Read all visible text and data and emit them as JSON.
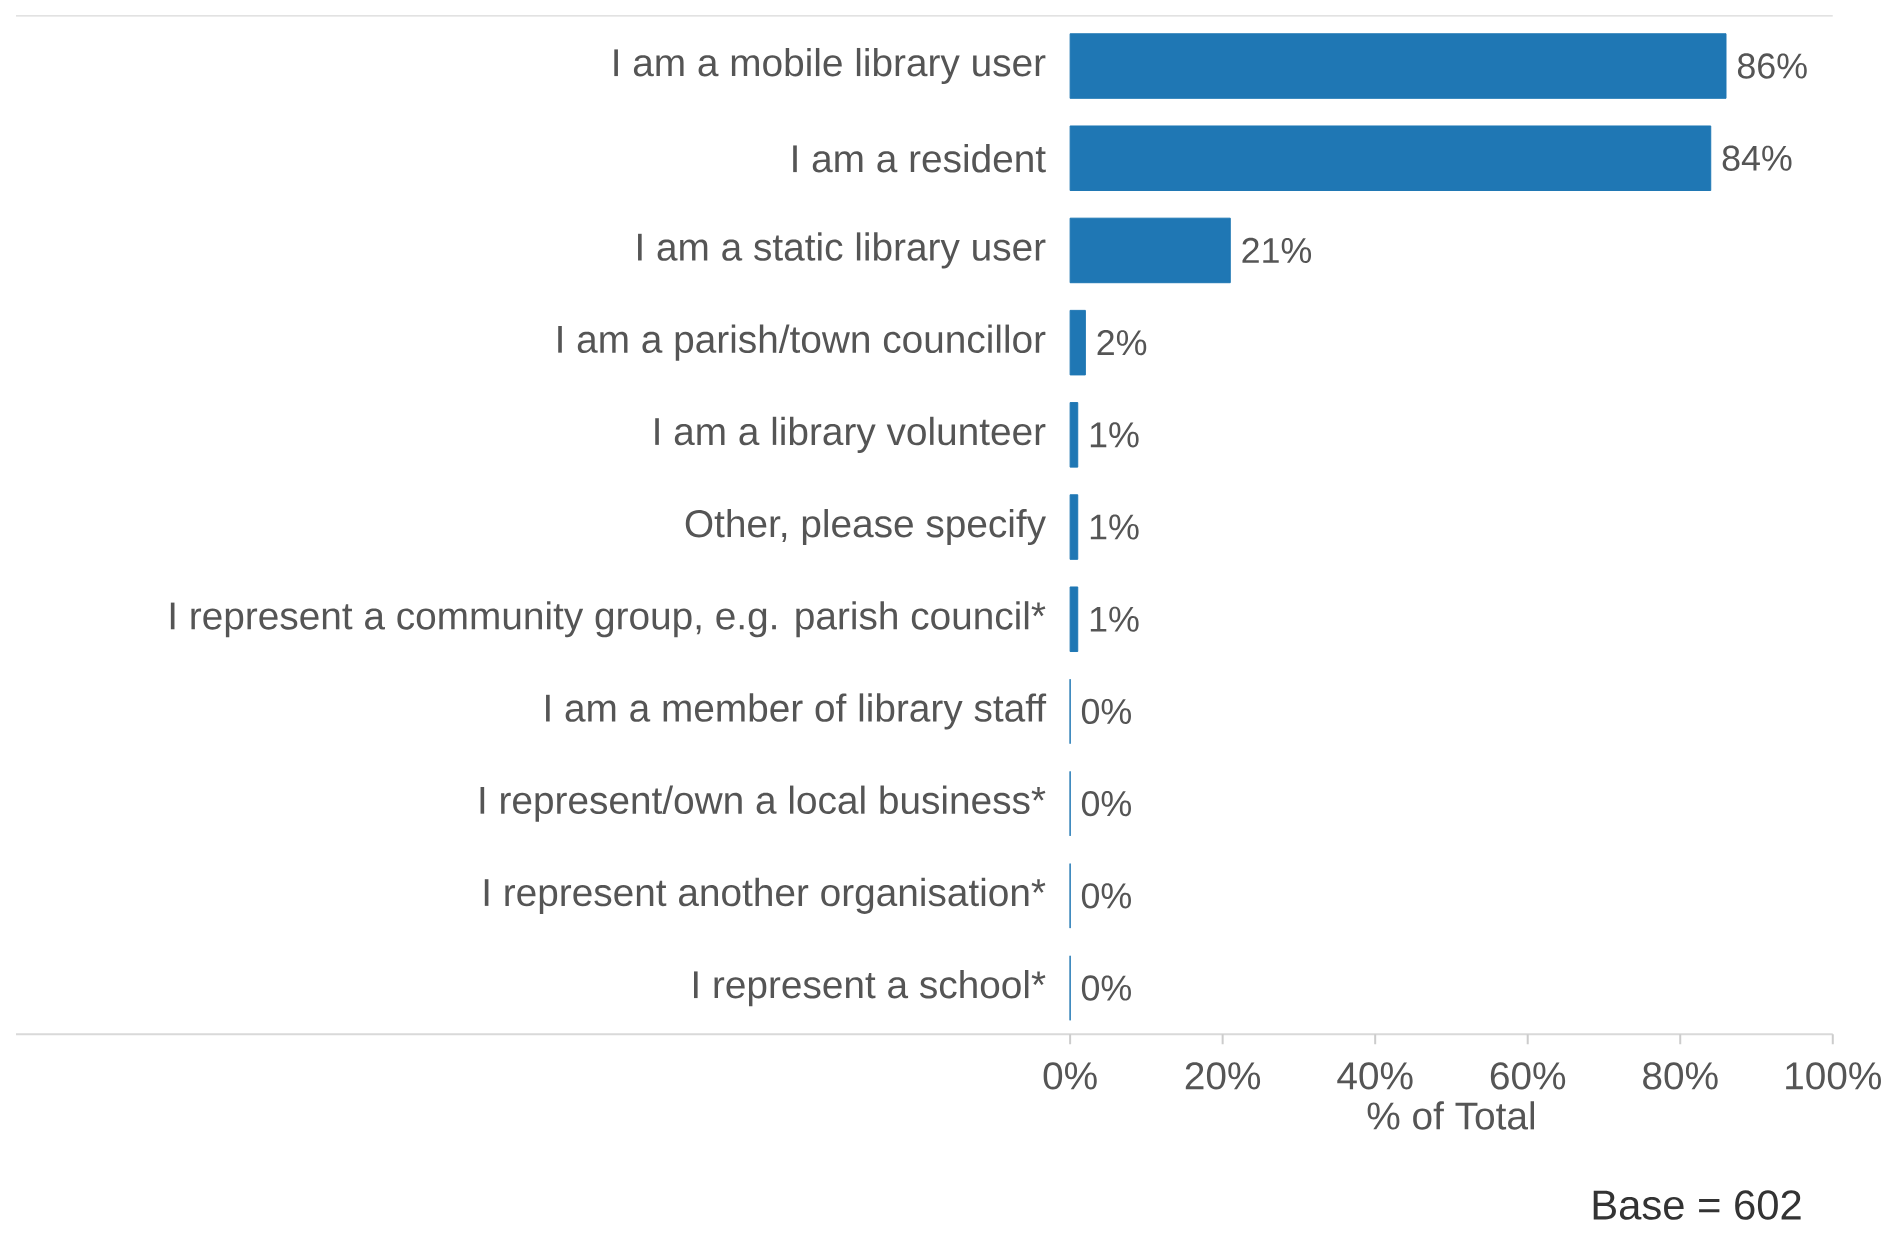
{
  "chart_data": {
    "type": "bar",
    "orientation": "horizontal",
    "categories": [
      "I am a mobile library user",
      "I am a resident",
      "I am a static library user",
      "I am a parish/town councillor",
      "I am a library volunteer",
      "Other, please specify",
      "I represent a community group, e.g. parish council*",
      "I am a member of library staff",
      "I represent/own a local business*",
      "I represent another organisation*",
      "I represent a school*"
    ],
    "values": [
      86,
      84,
      21,
      2,
      1,
      1,
      1,
      0,
      0,
      0,
      0
    ],
    "value_labels": [
      "86%",
      "84%",
      "21%",
      "2%",
      "1%",
      "1%",
      "1%",
      "0%",
      "0%",
      "0%",
      "0%"
    ],
    "color": "#1f77b4",
    "xlim": [
      0,
      100
    ],
    "xticks": [
      {
        "value": 0,
        "label": "0%"
      },
      {
        "value": 20,
        "label": "20%"
      },
      {
        "value": 40,
        "label": "40%"
      },
      {
        "value": 60,
        "label": "60%"
      },
      {
        "value": 80,
        "label": "80%"
      },
      {
        "value": 100,
        "label": "100%"
      }
    ],
    "xlabel": "% of Total",
    "grid": false,
    "annotations": [
      "Base = 602"
    ]
  }
}
